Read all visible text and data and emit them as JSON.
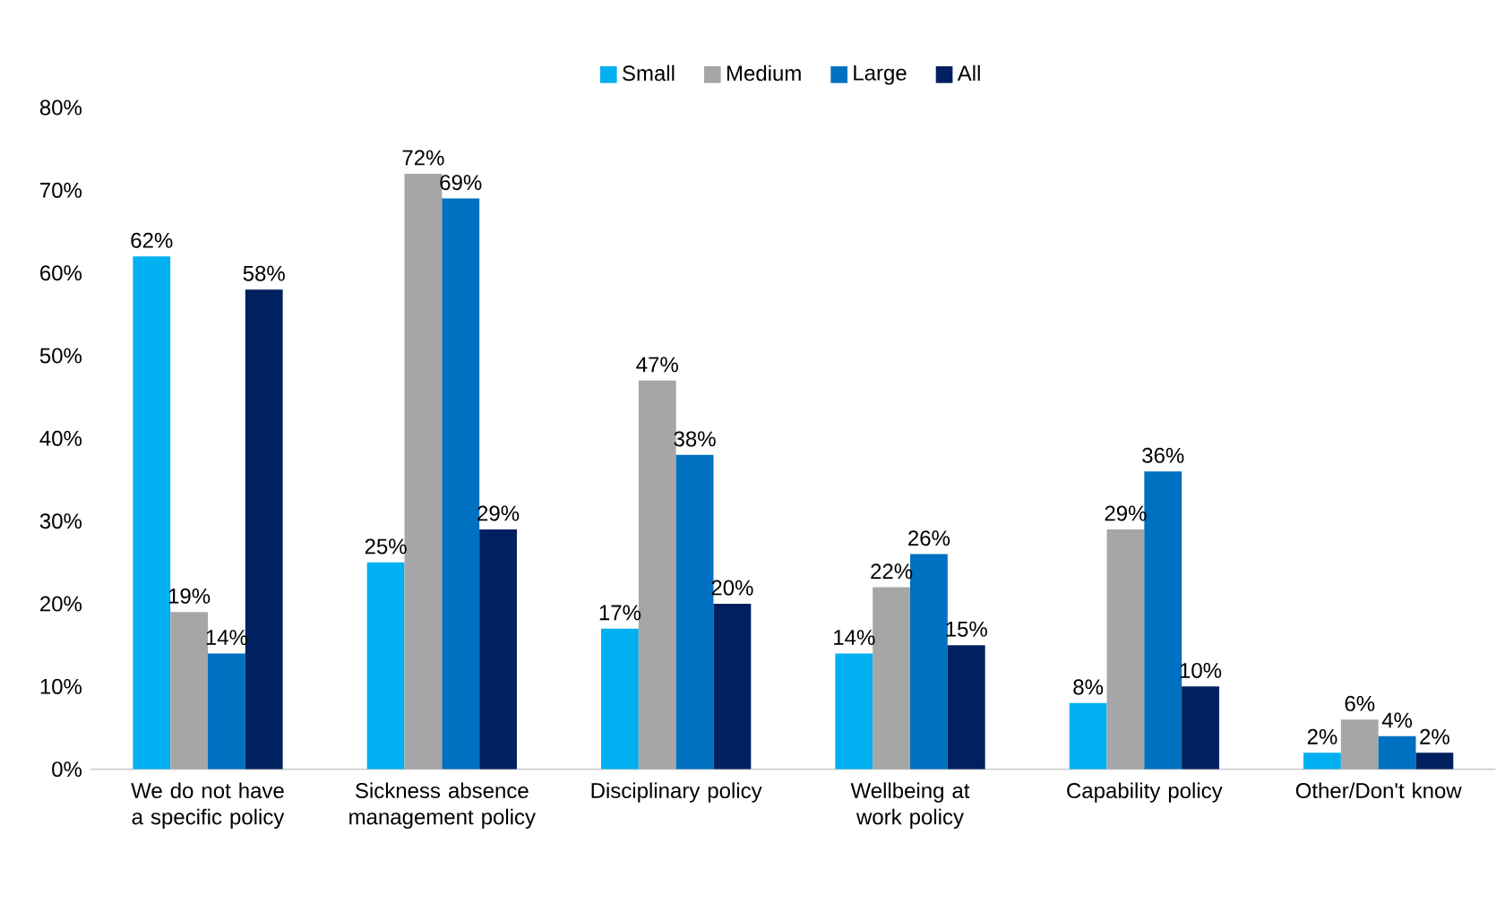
{
  "chart_data": {
    "type": "bar",
    "categories": [
      "We do not have a specific policy",
      "Sickness absence management policy",
      "Disciplinary policy",
      "Wellbeing at work policy",
      "Capability policy",
      "Other/Don't know"
    ],
    "series": [
      {
        "name": "Small",
        "color": "#00b0f0",
        "values": [
          62,
          25,
          17,
          14,
          8,
          2
        ],
        "value_labels": [
          "62%",
          "25%",
          "17%",
          "14%",
          "8%",
          "2%"
        ]
      },
      {
        "name": "Medium",
        "color": "#a6a6a6",
        "values": [
          19,
          72,
          47,
          22,
          29,
          6
        ],
        "value_labels": [
          "19%",
          "72%",
          "47%",
          "22%",
          "29%",
          "6%"
        ]
      },
      {
        "name": "Large",
        "color": "#0070c0",
        "values": [
          14,
          69,
          38,
          26,
          36,
          4
        ],
        "value_labels": [
          "14%",
          "69%",
          "38%",
          "26%",
          "36%",
          "4%"
        ]
      },
      {
        "name": "All",
        "color": "#002060",
        "values": [
          58,
          29,
          20,
          15,
          10,
          2
        ],
        "value_labels": [
          "58%",
          "29%",
          "20%",
          "15%",
          "10%",
          "2%"
        ]
      }
    ],
    "ylim": [
      0,
      80
    ],
    "yticks": [
      {
        "value": 0,
        "label": "0%"
      },
      {
        "value": 10,
        "label": "10%"
      },
      {
        "value": 20,
        "label": "20%"
      },
      {
        "value": 30,
        "label": "30%"
      },
      {
        "value": 40,
        "label": "40%"
      },
      {
        "value": 50,
        "label": "50%"
      },
      {
        "value": 60,
        "label": "60%"
      },
      {
        "value": 70,
        "label": "70%"
      },
      {
        "value": 80,
        "label": "80%"
      }
    ],
    "legend": "top",
    "grid": false
  }
}
